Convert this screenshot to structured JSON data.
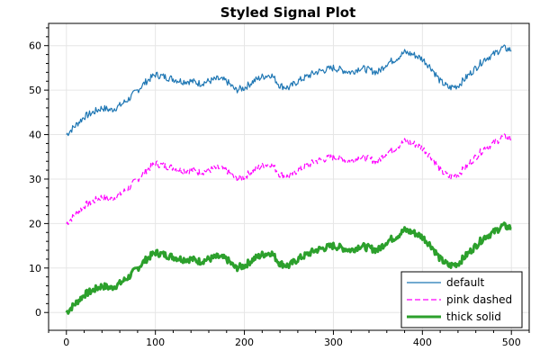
{
  "chart_data": {
    "type": "line",
    "title": "Styled Signal Plot",
    "xlabel": "",
    "ylabel": "",
    "xlim": [
      -20,
      520
    ],
    "ylim": [
      -4,
      65
    ],
    "grid": true,
    "legend_position": "bottom-right",
    "x_ticks": [
      0,
      100,
      200,
      300,
      400,
      500
    ],
    "y_ticks": [
      0,
      10,
      20,
      30,
      40,
      50,
      60
    ],
    "x": [
      0,
      10,
      20,
      30,
      40,
      50,
      60,
      70,
      80,
      90,
      100,
      110,
      120,
      130,
      140,
      150,
      160,
      170,
      180,
      190,
      200,
      210,
      220,
      230,
      240,
      250,
      260,
      270,
      280,
      290,
      300,
      310,
      320,
      330,
      340,
      350,
      360,
      370,
      380,
      390,
      400,
      410,
      420,
      430,
      440,
      450,
      460,
      470,
      480,
      490,
      500
    ],
    "series": [
      {
        "name": "default",
        "color": "#1f77b4",
        "style": "solid",
        "width": 1.2,
        "values": [
          0,
          2,
          4,
          5,
          6,
          5.5,
          6.5,
          8,
          10,
          12,
          13.5,
          13,
          12.5,
          12,
          12,
          11.5,
          12,
          12.5,
          12,
          10,
          10.5,
          12,
          13,
          13.5,
          11,
          10.5,
          12,
          13,
          14,
          14.5,
          15,
          14.5,
          14,
          15,
          14.5,
          14,
          16,
          17,
          18.5,
          18,
          17,
          15,
          12,
          10.5,
          11,
          13,
          15,
          17,
          18,
          19.5,
          19
        ]
      },
      {
        "name": "pink dashed",
        "color": "#ff00ff",
        "style": "dashed",
        "width": 1.2,
        "values": [
          0,
          2,
          4,
          5,
          6,
          5.5,
          6.5,
          8,
          10,
          12,
          13.5,
          13,
          12.5,
          12,
          12,
          11.5,
          12,
          12.5,
          12,
          10,
          10.5,
          12,
          13,
          13.5,
          11,
          10.5,
          12,
          13,
          14,
          14.5,
          15,
          14.5,
          14,
          15,
          14.5,
          14,
          16,
          17,
          18.5,
          18,
          17,
          15,
          12,
          10.5,
          11,
          13,
          15,
          17,
          18,
          19.5,
          19
        ]
      },
      {
        "name": "thick solid",
        "color": "#2ca02c",
        "style": "solid",
        "width": 3,
        "values": [
          0,
          2,
          4,
          5,
          6,
          5.5,
          6.5,
          8,
          10,
          12,
          13.5,
          13,
          12.5,
          12,
          12,
          11.5,
          12,
          12.5,
          12,
          10,
          10.5,
          12,
          13,
          13.5,
          11,
          10.5,
          12,
          13,
          14,
          14.5,
          15,
          14.5,
          14,
          15,
          14.5,
          14,
          16,
          17,
          18.5,
          18,
          17,
          15,
          12,
          10.5,
          11,
          13,
          15,
          17,
          18,
          19.5,
          19
        ]
      }
    ],
    "series_offsets": [
      40,
      20,
      0
    ]
  }
}
